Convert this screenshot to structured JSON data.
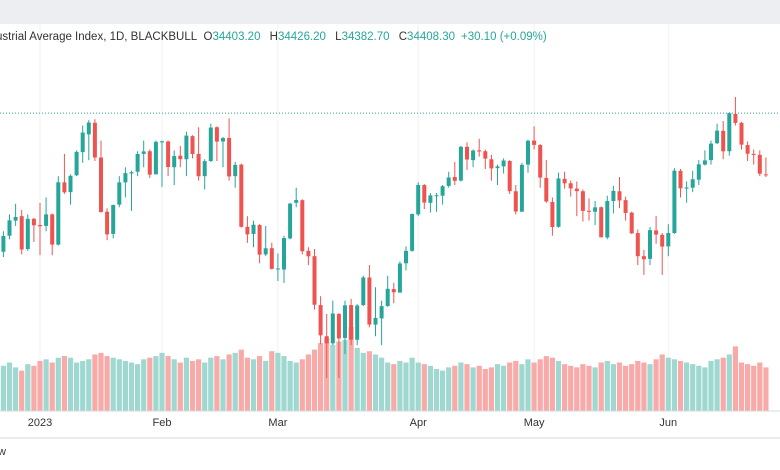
{
  "header": {
    "title": "ustrial Average Index, 1D, BLACKBULL",
    "open_label": "O",
    "open": "34403.20",
    "high_label": "H",
    "high": "34426.20",
    "low_label": "L",
    "low": "34382.70",
    "close_label": "C",
    "close": {
      "value": 34408.3,
      "label": "34408.30"
    },
    "change": "+30.10 (+0.09%)"
  },
  "chart_data": {
    "type": "candlestick",
    "up_color": "#26a69a",
    "down_color": "#ef5350",
    "volume_up_color": "#9fd8d0",
    "volume_down_color": "#f7aaa8",
    "xticks": [
      {
        "value": 6,
        "label": "2023"
      },
      {
        "value": 26,
        "label": "Feb"
      },
      {
        "value": 45,
        "label": "Mar"
      },
      {
        "value": 68,
        "label": "Apr"
      },
      {
        "value": 87,
        "label": "May"
      },
      {
        "value": 109,
        "label": "Jun"
      }
    ],
    "candles": [
      [
        32850,
        33080,
        32790,
        33027
      ],
      [
        33030,
        33270,
        32990,
        33203
      ],
      [
        33200,
        33390,
        33140,
        33241
      ],
      [
        33250,
        33320,
        32820,
        32875
      ],
      [
        32880,
        33270,
        32860,
        33220
      ],
      [
        33220,
        33230,
        32960,
        33147
      ],
      [
        33150,
        33400,
        32810,
        33136
      ],
      [
        33140,
        33460,
        33080,
        33270
      ],
      [
        33270,
        33280,
        32810,
        32930
      ],
      [
        32930,
        33700,
        32920,
        33631
      ],
      [
        33630,
        33950,
        33500,
        33518
      ],
      [
        33520,
        33720,
        33380,
        33704
      ],
      [
        33710,
        33990,
        33700,
        33973
      ],
      [
        33970,
        34270,
        33850,
        34190
      ],
      [
        34170,
        34330,
        33880,
        34303
      ],
      [
        34300,
        34340,
        33870,
        33910
      ],
      [
        33910,
        34100,
        33290,
        33297
      ],
      [
        33300,
        33340,
        32980,
        33045
      ],
      [
        33050,
        33380,
        33000,
        33375
      ],
      [
        33380,
        33700,
        33350,
        33630
      ],
      [
        33630,
        33800,
        33460,
        33734
      ],
      [
        33730,
        33760,
        33310,
        33744
      ],
      [
        33750,
        33980,
        33700,
        33949
      ],
      [
        33950,
        34100,
        33800,
        33978
      ],
      [
        33980,
        34000,
        33680,
        33717
      ],
      [
        33720,
        34100,
        33720,
        34086
      ],
      [
        34080,
        34100,
        33580,
        34092
      ],
      [
        34090,
        34100,
        33700,
        33803
      ],
      [
        33800,
        33990,
        33600,
        33926
      ],
      [
        33930,
        34040,
        33800,
        33891
      ],
      [
        33890,
        34200,
        33700,
        34156
      ],
      [
        34150,
        34160,
        33900,
        33949
      ],
      [
        33950,
        34250,
        33650,
        33699
      ],
      [
        33700,
        33890,
        33550,
        33869
      ],
      [
        33870,
        34290,
        33860,
        34246
      ],
      [
        34250,
        34260,
        33870,
        34089
      ],
      [
        34090,
        34140,
        33800,
        34128
      ],
      [
        34130,
        34350,
        33650,
        33697
      ],
      [
        33700,
        33860,
        33570,
        33827
      ],
      [
        33830,
        33840,
        33120,
        33130
      ],
      [
        33130,
        33250,
        32950,
        33045
      ],
      [
        33050,
        33200,
        32900,
        33154
      ],
      [
        33150,
        33160,
        32720,
        32817
      ],
      [
        32820,
        33140,
        32800,
        32889
      ],
      [
        32890,
        32950,
        32650,
        32657
      ],
      [
        32660,
        32830,
        32520,
        32662
      ],
      [
        32650,
        33030,
        32500,
        33004
      ],
      [
        33000,
        33400,
        32990,
        33391
      ],
      [
        33400,
        33570,
        33350,
        33431
      ],
      [
        33430,
        33440,
        32820,
        32856
      ],
      [
        32860,
        32900,
        32700,
        32798
      ],
      [
        32800,
        32880,
        32200,
        32254
      ],
      [
        32250,
        32350,
        31810,
        31910
      ],
      [
        31900,
        32150,
        31430,
        31820
      ],
      [
        31820,
        32300,
        31800,
        32155
      ],
      [
        32150,
        32160,
        31430,
        31875
      ],
      [
        31880,
        32300,
        31700,
        32247
      ],
      [
        32250,
        32320,
        31800,
        31862
      ],
      [
        31860,
        32260,
        31800,
        32245
      ],
      [
        32250,
        32580,
        32240,
        32561
      ],
      [
        32560,
        32700,
        32000,
        32031
      ],
      [
        32030,
        32450,
        31900,
        32106
      ],
      [
        32100,
        32300,
        31800,
        32238
      ],
      [
        32240,
        32580,
        32230,
        32433
      ],
      [
        32430,
        32500,
        32270,
        32394
      ],
      [
        32390,
        32740,
        32390,
        32718
      ],
      [
        32720,
        32910,
        32640,
        32860
      ],
      [
        32860,
        33280,
        32850,
        33274
      ],
      [
        33270,
        33630,
        33250,
        33601
      ],
      [
        33600,
        33610,
        33330,
        33403
      ],
      [
        33400,
        33510,
        33290,
        33483
      ],
      [
        33480,
        33510,
        33300,
        33485
      ],
      [
        33480,
        33600,
        33380,
        33587
      ],
      [
        33590,
        33750,
        33570,
        33685
      ],
      [
        33690,
        33860,
        33600,
        33647
      ],
      [
        33650,
        34040,
        33640,
        34030
      ],
      [
        34030,
        34080,
        33770,
        33887
      ],
      [
        33880,
        34000,
        33800,
        33988
      ],
      [
        33990,
        34120,
        33920,
        33977
      ],
      [
        33980,
        34000,
        33780,
        33897
      ],
      [
        33890,
        33940,
        33650,
        33787
      ],
      [
        33790,
        33830,
        33600,
        33809
      ],
      [
        33810,
        33900,
        33730,
        33876
      ],
      [
        33870,
        33880,
        33500,
        33531
      ],
      [
        33530,
        33600,
        33270,
        33302
      ],
      [
        33300,
        33850,
        33300,
        33827
      ],
      [
        33830,
        34110,
        33740,
        34098
      ],
      [
        34100,
        34260,
        34000,
        34051
      ],
      [
        34050,
        34060,
        33570,
        33684
      ],
      [
        33680,
        33880,
        33400,
        33415
      ],
      [
        33410,
        33460,
        33030,
        33128
      ],
      [
        33130,
        33740,
        33120,
        33674
      ],
      [
        33670,
        33750,
        33560,
        33619
      ],
      [
        33620,
        33650,
        33470,
        33562
      ],
      [
        33560,
        33640,
        33250,
        33531
      ],
      [
        33530,
        33550,
        33190,
        33309
      ],
      [
        33310,
        33450,
        33200,
        33301
      ],
      [
        33300,
        33420,
        33150,
        33349
      ],
      [
        33350,
        33360,
        33010,
        33012
      ],
      [
        33010,
        33480,
        32990,
        33420
      ],
      [
        33420,
        33590,
        33280,
        33535
      ],
      [
        33530,
        33690,
        33340,
        33427
      ],
      [
        33430,
        33470,
        33200,
        33286
      ],
      [
        33290,
        33300,
        33050,
        33056
      ],
      [
        33060,
        33100,
        32700,
        32800
      ],
      [
        32800,
        32870,
        32590,
        32765
      ],
      [
        32770,
        33130,
        32700,
        33093
      ],
      [
        33090,
        33250,
        32940,
        33043
      ],
      [
        33040,
        33060,
        32590,
        32908
      ],
      [
        32910,
        33160,
        32800,
        33061
      ],
      [
        33060,
        33790,
        33050,
        33762
      ],
      [
        33760,
        33780,
        33460,
        33563
      ],
      [
        33560,
        33640,
        33400,
        33573
      ],
      [
        33570,
        33760,
        33520,
        33665
      ],
      [
        33660,
        33880,
        33600,
        33833
      ],
      [
        33830,
        33990,
        33820,
        33877
      ],
      [
        33880,
        34100,
        33830,
        34066
      ],
      [
        34070,
        34290,
        34060,
        34212
      ],
      [
        34210,
        34320,
        33890,
        33979
      ],
      [
        33980,
        34420,
        33930,
        34408
      ],
      [
        34400,
        34590,
        34270,
        34299
      ],
      [
        34300,
        34310,
        34000,
        34054
      ],
      [
        34050,
        34090,
        33870,
        33952
      ],
      [
        33950,
        34000,
        33830,
        33947
      ],
      [
        33940,
        33990,
        33700,
        33727
      ],
      [
        33720,
        33910,
        33690,
        33714
      ]
    ],
    "volumes": [
      280,
      300,
      270,
      250,
      290,
      280,
      310,
      320,
      300,
      330,
      340,
      330,
      300,
      310,
      320,
      350,
      360,
      340,
      330,
      320,
      310,
      300,
      290,
      320,
      330,
      340,
      360,
      340,
      320,
      300,
      330,
      310,
      320,
      300,
      330,
      340,
      320,
      350,
      360,
      380,
      330,
      320,
      340,
      310,
      370,
      360,
      340,
      310,
      300,
      320,
      350,
      380,
      420,
      450,
      410,
      430,
      440,
      520,
      390,
      360,
      370,
      350,
      330,
      300,
      290,
      310,
      300,
      330,
      300,
      290,
      280,
      260,
      250,
      270,
      280,
      300,
      290,
      270,
      280,
      260,
      270,
      290,
      280,
      300,
      310,
      290,
      320,
      300,
      320,
      340,
      330,
      310,
      290,
      280,
      270,
      290,
      280,
      270,
      300,
      310,
      290,
      300,
      280,
      290,
      310,
      300,
      290,
      320,
      350,
      330,
      320,
      310,
      300,
      290,
      280,
      270,
      310,
      320,
      330,
      350,
      400,
      300,
      290,
      280,
      300,
      270
    ]
  },
  "footer": "w"
}
